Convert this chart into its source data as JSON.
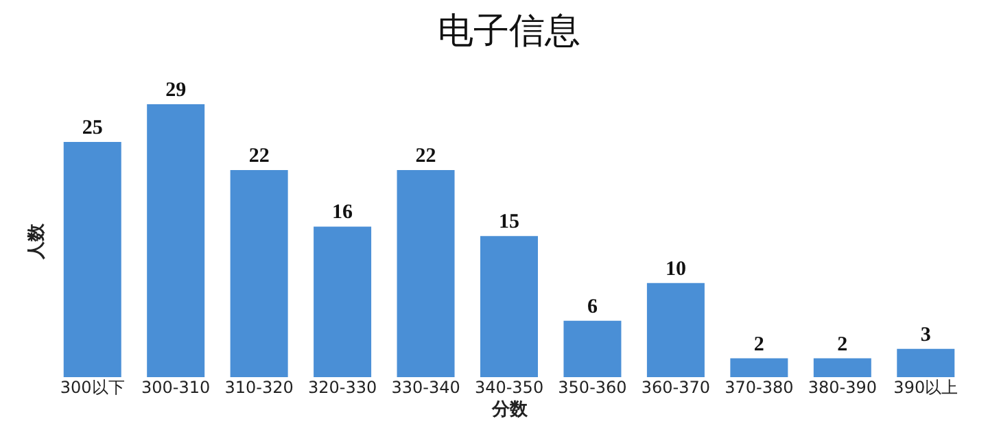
{
  "chart_data": {
    "type": "bar",
    "title": "电子信息",
    "xlabel": "分数",
    "ylabel": "人数",
    "categories": [
      "300以下",
      "300-310",
      "310-320",
      "320-330",
      "330-340",
      "340-350",
      "350-360",
      "360-370",
      "370-380",
      "380-390",
      "390以上"
    ],
    "values": [
      25,
      29,
      22,
      16,
      22,
      15,
      6,
      10,
      2,
      2,
      3
    ],
    "color": "#4a8fd6",
    "data_labels": true,
    "tick_labels": "x",
    "grid": false
  }
}
